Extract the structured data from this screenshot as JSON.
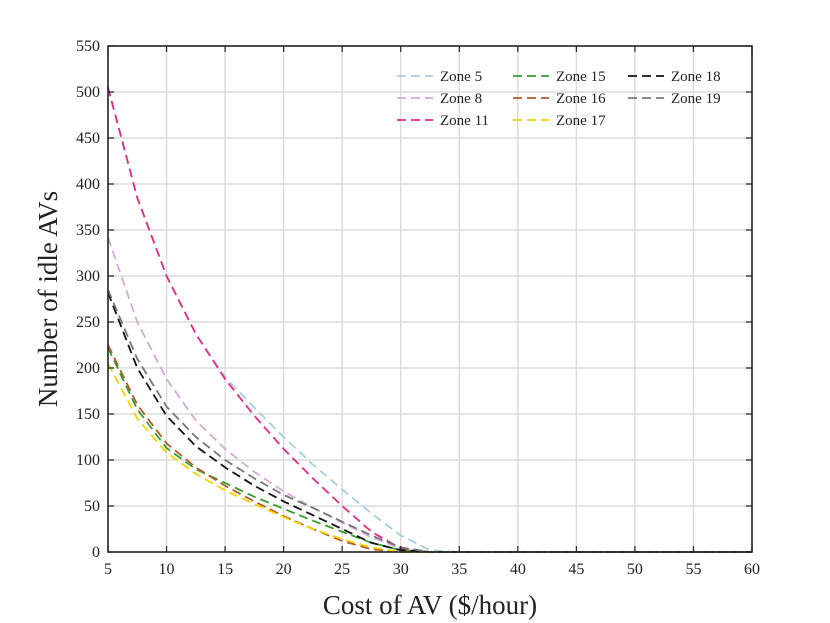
{
  "chart_data": {
    "type": "line",
    "title": "",
    "xlabel": "Cost of AV ($/hour)",
    "ylabel": "Number of idle AVs",
    "xlim": [
      5,
      60
    ],
    "ylim": [
      0,
      550
    ],
    "xticks": [
      5,
      10,
      15,
      20,
      25,
      30,
      35,
      40,
      45,
      50,
      55,
      60
    ],
    "yticks": [
      0,
      50,
      100,
      150,
      200,
      250,
      300,
      350,
      400,
      450,
      500,
      550
    ],
    "grid": true,
    "legend_position": "top-right",
    "x": [
      5,
      7.5,
      10,
      12.5,
      15,
      17.5,
      20,
      22.5,
      25,
      27.5,
      30,
      32.5,
      35,
      40,
      45,
      50,
      55,
      60
    ],
    "series": [
      {
        "name": "Zone 5",
        "color": "#a6cee3",
        "values": [
          505,
          385,
          300,
          237,
          190,
          157,
          125,
          95,
          68,
          42,
          18,
          2,
          0,
          0,
          0,
          0,
          0,
          0
        ]
      },
      {
        "name": "Zone 8",
        "color": "#d4a8dc",
        "values": [
          342,
          250,
          188,
          143,
          112,
          87,
          66,
          48,
          32,
          16,
          4,
          0,
          0,
          0,
          0,
          0,
          0,
          0
        ]
      },
      {
        "name": "Zone 11",
        "color": "#e7298a",
        "values": [
          505,
          385,
          300,
          237,
          188,
          148,
          112,
          80,
          50,
          22,
          4,
          0,
          0,
          0,
          0,
          0,
          0,
          0
        ]
      },
      {
        "name": "Zone 15",
        "color": "#33a02c",
        "values": [
          222,
          155,
          113,
          90,
          75,
          60,
          47,
          34,
          22,
          10,
          2,
          0,
          0,
          0,
          0,
          0,
          0,
          0
        ]
      },
      {
        "name": "Zone 16",
        "color": "#b5582a",
        "values": [
          225,
          160,
          118,
          92,
          72,
          55,
          39,
          25,
          12,
          3,
          0,
          0,
          0,
          0,
          0,
          0,
          0,
          0
        ]
      },
      {
        "name": "Zone 17",
        "color": "#f4d300",
        "values": [
          205,
          145,
          108,
          85,
          67,
          52,
          38,
          25,
          14,
          5,
          0,
          0,
          0,
          0,
          0,
          0,
          0,
          0
        ]
      },
      {
        "name": "Zone 18",
        "color": "#111111",
        "values": [
          282,
          200,
          148,
          115,
          92,
          72,
          55,
          40,
          25,
          10,
          2,
          0,
          0,
          0,
          0,
          0,
          0,
          0
        ]
      },
      {
        "name": "Zone 19",
        "color": "#777777",
        "values": [
          285,
          210,
          158,
          125,
          100,
          80,
          62,
          48,
          33,
          18,
          5,
          0,
          0,
          0,
          0,
          0,
          0,
          0
        ]
      }
    ]
  }
}
